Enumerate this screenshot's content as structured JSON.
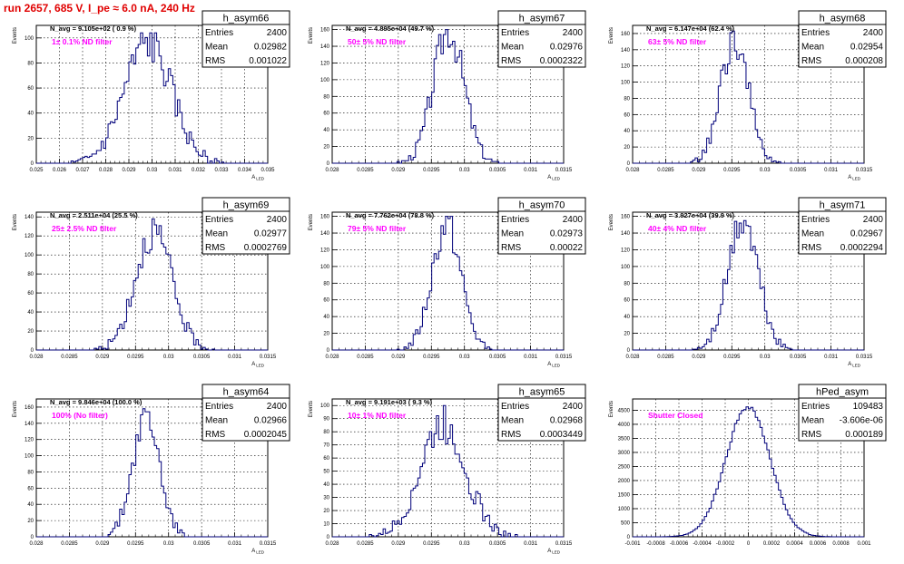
{
  "header": {
    "run_title": "run 2657,   685 V, I_pe ≈ 6.0 nA, 240 Hz"
  },
  "colors": {
    "title": "#e00000",
    "histogram": "#00007a",
    "annotation": "#ff00ff",
    "grid": "#000000"
  },
  "chart_data": [
    {
      "type": "bar",
      "name": "h_asym66",
      "ylabel": "Events",
      "xlabel": "A_LED",
      "xlim": [
        0.025,
        0.035
      ],
      "ylim": [
        0,
        110
      ],
      "xticks": [
        0.025,
        0.026,
        0.027,
        0.028,
        0.029,
        0.03,
        0.031,
        0.032,
        0.033,
        0.034,
        0.035
      ],
      "xticklabels": [
        "0.025",
        "0.026",
        "0.027",
        "0.028",
        "0.029",
        "0.03",
        "0.031",
        "0.032",
        "0.033",
        "0.034",
        "0.035"
      ],
      "yticks": [
        0,
        20,
        40,
        60,
        80,
        100
      ],
      "yticklabels": [
        "0",
        "20",
        "40",
        "60",
        "80",
        "100"
      ],
      "nbins": 100,
      "hist": {
        "mean": 0.02982,
        "rms": 0.001022,
        "peak": 104,
        "seed": 66
      },
      "stats": {
        "title": "h_asym66",
        "rows": [
          [
            "Entries",
            "2400"
          ],
          [
            "Mean",
            "0.02982"
          ],
          [
            "RMS",
            "0.001022"
          ]
        ]
      },
      "navg": "N_avg = 9.105e+02 ( 0.9 %)",
      "filter": "1± 0.1% ND filter"
    },
    {
      "type": "bar",
      "name": "h_asym67",
      "ylabel": "Events",
      "xlabel": "A_LED",
      "xlim": [
        0.028,
        0.0315
      ],
      "ylim": [
        0,
        165
      ],
      "xticks": [
        0.028,
        0.0285,
        0.029,
        0.0295,
        0.03,
        0.0305,
        0.031,
        0.0315
      ],
      "xticklabels": [
        "0.028",
        "0.0285",
        "0.029",
        "0.0295",
        "0.03",
        "0.0305",
        "0.031",
        "0.0315"
      ],
      "yticks": [
        0,
        20,
        40,
        60,
        80,
        100,
        120,
        140,
        160
      ],
      "yticklabels": [
        "0",
        "20",
        "40",
        "60",
        "80",
        "100",
        "120",
        "140",
        "160"
      ],
      "nbins": 100,
      "hist": {
        "mean": 0.02976,
        "rms": 0.0002322,
        "peak": 160,
        "seed": 67
      },
      "stats": {
        "title": "h_asym67",
        "rows": [
          [
            "Entries",
            "2400"
          ],
          [
            "Mean",
            "0.02976"
          ],
          [
            "RMS",
            "0.0002322"
          ]
        ]
      },
      "navg": "N_avg = 4.895e+04 (49.7 %)",
      "filter": "50± 5% ND filter"
    },
    {
      "type": "bar",
      "name": "h_asym68",
      "ylabel": "Events",
      "xlabel": "A_LED",
      "xlim": [
        0.028,
        0.0315
      ],
      "ylim": [
        0,
        170
      ],
      "xticks": [
        0.028,
        0.0285,
        0.029,
        0.0295,
        0.03,
        0.0305,
        0.031,
        0.0315
      ],
      "xticklabels": [
        "0.028",
        "0.0285",
        "0.029",
        "0.0295",
        "0.03",
        "0.0305",
        "0.031",
        "0.0315"
      ],
      "yticks": [
        0,
        20,
        40,
        60,
        80,
        100,
        120,
        140,
        160
      ],
      "yticklabels": [
        "0",
        "20",
        "40",
        "60",
        "80",
        "100",
        "120",
        "140",
        "160"
      ],
      "nbins": 100,
      "hist": {
        "mean": 0.02954,
        "rms": 0.000208,
        "peak": 163,
        "seed": 68
      },
      "stats": {
        "title": "h_asym68",
        "rows": [
          [
            "Entries",
            "2400"
          ],
          [
            "Mean",
            "0.02954"
          ],
          [
            "RMS",
            "0.000208"
          ]
        ]
      },
      "navg": "N_avg = 6.147e+04 (62.4 %)",
      "filter": "63± 5% ND filter"
    },
    {
      "type": "bar",
      "name": "h_asym69",
      "ylabel": "Events",
      "xlabel": "A_LED",
      "xlim": [
        0.028,
        0.0315
      ],
      "ylim": [
        0,
        145
      ],
      "xticks": [
        0.028,
        0.0285,
        0.029,
        0.0295,
        0.03,
        0.0305,
        0.031,
        0.0315
      ],
      "xticklabels": [
        "0.028",
        "0.0285",
        "0.029",
        "0.0295",
        "0.03",
        "0.0305",
        "0.031",
        "0.0315"
      ],
      "yticks": [
        0,
        20,
        40,
        60,
        80,
        100,
        120,
        140
      ],
      "yticklabels": [
        "0",
        "20",
        "40",
        "60",
        "80",
        "100",
        "120",
        "140"
      ],
      "nbins": 100,
      "hist": {
        "mean": 0.02977,
        "rms": 0.0002769,
        "peak": 138,
        "seed": 69
      },
      "stats": {
        "title": "h_asym69",
        "rows": [
          [
            "Entries",
            "2400"
          ],
          [
            "Mean",
            "0.02977"
          ],
          [
            "RMS",
            "0.0002769"
          ]
        ]
      },
      "navg": "N_avg = 2.511e+04 (25.5 %)",
      "filter": "25± 2.5% ND filter"
    },
    {
      "type": "bar",
      "name": "h_asym70",
      "ylabel": "Events",
      "xlabel": "A_LED",
      "xlim": [
        0.028,
        0.0315
      ],
      "ylim": [
        0,
        165
      ],
      "xticks": [
        0.028,
        0.0285,
        0.029,
        0.0295,
        0.03,
        0.0305,
        0.031,
        0.0315
      ],
      "xticklabels": [
        "0.028",
        "0.0285",
        "0.029",
        "0.0295",
        "0.03",
        "0.0305",
        "0.031",
        "0.0315"
      ],
      "yticks": [
        0,
        20,
        40,
        60,
        80,
        100,
        120,
        140,
        160
      ],
      "yticklabels": [
        "0",
        "20",
        "40",
        "60",
        "80",
        "100",
        "120",
        "140",
        "160"
      ],
      "nbins": 100,
      "hist": {
        "mean": 0.02973,
        "rms": 0.00022,
        "peak": 160,
        "seed": 70
      },
      "stats": {
        "title": "h_asym70",
        "rows": [
          [
            "Entries",
            "2400"
          ],
          [
            "Mean",
            "0.02973"
          ],
          [
            "RMS",
            "0.00022"
          ]
        ]
      },
      "navg": "N_avg = 7.762e+04 (78.8 %)",
      "filter": "79± 5% ND filter"
    },
    {
      "type": "bar",
      "name": "h_asym71",
      "ylabel": "Events",
      "xlabel": "A_LED",
      "xlim": [
        0.028,
        0.0315
      ],
      "ylim": [
        0,
        165
      ],
      "xticks": [
        0.028,
        0.0285,
        0.029,
        0.0295,
        0.03,
        0.0305,
        0.031,
        0.0315
      ],
      "xticklabels": [
        "0.028",
        "0.0285",
        "0.029",
        "0.0295",
        "0.03",
        "0.0305",
        "0.031",
        "0.0315"
      ],
      "yticks": [
        0,
        20,
        40,
        60,
        80,
        100,
        120,
        140,
        160
      ],
      "yticklabels": [
        "0",
        "20",
        "40",
        "60",
        "80",
        "100",
        "120",
        "140",
        "160"
      ],
      "nbins": 100,
      "hist": {
        "mean": 0.02967,
        "rms": 0.0002294,
        "peak": 155,
        "seed": 71
      },
      "stats": {
        "title": "h_asym71",
        "rows": [
          [
            "Entries",
            "2400"
          ],
          [
            "Mean",
            "0.02967"
          ],
          [
            "RMS",
            "0.0002294"
          ]
        ]
      },
      "navg": "N_avg = 3.927e+04 (39.9 %)",
      "filter": "40± 4% ND filter"
    },
    {
      "type": "bar",
      "name": "h_asym64",
      "ylabel": "Events",
      "xlabel": "A_LED",
      "xlim": [
        0.028,
        0.0315
      ],
      "ylim": [
        0,
        170
      ],
      "xticks": [
        0.028,
        0.0285,
        0.029,
        0.0295,
        0.03,
        0.0305,
        0.031,
        0.0315
      ],
      "xticklabels": [
        "0.028",
        "0.0285",
        "0.029",
        "0.0295",
        "0.03",
        "0.0305",
        "0.031",
        "0.0315"
      ],
      "yticks": [
        0,
        20,
        40,
        60,
        80,
        100,
        120,
        140,
        160
      ],
      "yticklabels": [
        "0",
        "20",
        "40",
        "60",
        "80",
        "100",
        "120",
        "140",
        "160"
      ],
      "nbins": 100,
      "hist": {
        "mean": 0.02966,
        "rms": 0.0002045,
        "peak": 158,
        "seed": 64
      },
      "stats": {
        "title": "h_asym64",
        "rows": [
          [
            "Entries",
            "2400"
          ],
          [
            "Mean",
            "0.02966"
          ],
          [
            "RMS",
            "0.0002045"
          ]
        ]
      },
      "navg": "N_avg = 9.846e+04 (100.0 %)",
      "filter": "100% (No filter)"
    },
    {
      "type": "bar",
      "name": "h_asym65",
      "ylabel": "Events",
      "xlabel": "A_LED",
      "xlim": [
        0.028,
        0.0315
      ],
      "ylim": [
        0,
        105
      ],
      "xticks": [
        0.028,
        0.0285,
        0.029,
        0.0295,
        0.03,
        0.0305,
        0.031,
        0.0315
      ],
      "xticklabels": [
        "0.028",
        "0.0285",
        "0.029",
        "0.0295",
        "0.03",
        "0.0305",
        "0.031",
        "0.0315"
      ],
      "yticks": [
        0,
        10,
        20,
        30,
        40,
        50,
        60,
        70,
        80,
        90,
        100
      ],
      "yticklabels": [
        "0",
        "10",
        "20",
        "30",
        "40",
        "50",
        "60",
        "70",
        "80",
        "90",
        "100"
      ],
      "nbins": 100,
      "hist": {
        "mean": 0.02968,
        "rms": 0.0003449,
        "peak": 100,
        "seed": 65
      },
      "stats": {
        "title": "h_asym65",
        "rows": [
          [
            "Entries",
            "2400"
          ],
          [
            "Mean",
            "0.02968"
          ],
          [
            "RMS",
            "0.0003449"
          ]
        ]
      },
      "navg": "N_avg = 9.191e+03 ( 9.3 %)",
      "filter": "10± 1% ND filter"
    },
    {
      "type": "bar",
      "name": "hPed_asym",
      "ylabel": "Events",
      "xlabel": "",
      "xlim": [
        -0.001,
        0.001
      ],
      "ylim": [
        0,
        4900
      ],
      "xticks": [
        -0.001,
        -0.0008,
        -0.0006,
        -0.0004,
        -0.0002,
        0,
        0.0002,
        0.0004,
        0.0006,
        0.0008,
        0.001
      ],
      "xticklabels": [
        "-0.001",
        "-0.0008",
        "-0.0006",
        "-0.0004",
        "-0.0002",
        "0",
        "0.0002",
        "0.0004",
        "0.0006",
        "0.0008",
        "0.001"
      ],
      "yticks": [
        0,
        500,
        1000,
        1500,
        2000,
        2500,
        3000,
        3500,
        4000,
        4500
      ],
      "yticklabels": [
        "0",
        "500",
        "1000",
        "1500",
        "2000",
        "2500",
        "3000",
        "3500",
        "4000",
        "4500"
      ],
      "nbins": 100,
      "hist": {
        "mean": -3.606e-06,
        "rms": 0.000189,
        "peak": 4620,
        "seed": 99
      },
      "stats": {
        "title": "hPed_asym",
        "rows": [
          [
            "Entries",
            "109483"
          ],
          [
            "Mean",
            "-3.606e-06"
          ],
          [
            "RMS",
            "0.000189"
          ]
        ]
      },
      "navg": "",
      "filter": "Shutter Closed"
    }
  ]
}
